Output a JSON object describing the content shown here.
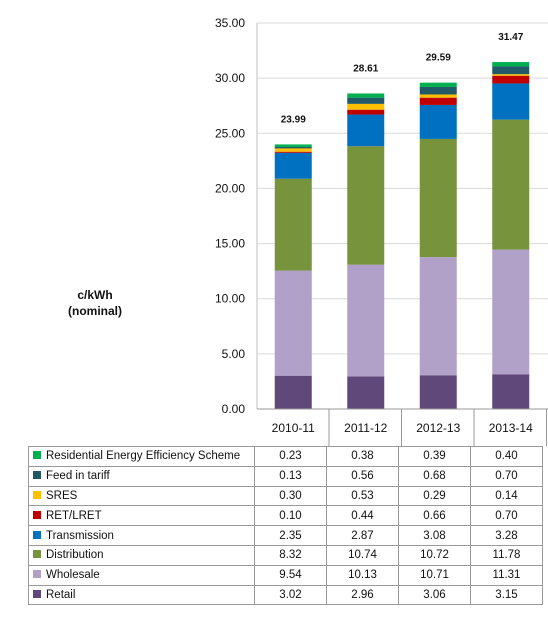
{
  "chart_data": {
    "type": "bar",
    "stacked": true,
    "categories": [
      "2010-11",
      "2011-12",
      "2012-13",
      "2013-14"
    ],
    "ylabel": "c/kWh\n(nominal)",
    "ylim": [
      0,
      35
    ],
    "yticks": [
      "0.00",
      "5.00",
      "10.00",
      "15.00",
      "20.00",
      "25.00",
      "30.00",
      "35.00"
    ],
    "totals": [
      "23.99",
      "28.61",
      "29.59",
      "31.47"
    ],
    "series": [
      {
        "name": "Retail",
        "color": "#60497a",
        "values": [
          3.02,
          2.96,
          3.06,
          3.15
        ],
        "labels": [
          "3.02",
          "2.96",
          "3.06",
          "3.15"
        ]
      },
      {
        "name": "Wholesale",
        "color": "#b1a0c7",
        "values": [
          9.54,
          10.13,
          10.71,
          11.31
        ],
        "labels": [
          "9.54",
          "10.13",
          "10.71",
          "11.31"
        ]
      },
      {
        "name": "Distribution",
        "color": "#77933c",
        "values": [
          8.32,
          10.74,
          10.72,
          11.78
        ],
        "labels": [
          "8.32",
          "10.74",
          "10.72",
          "11.78"
        ]
      },
      {
        "name": "Transmission",
        "color": "#0070c0",
        "values": [
          2.35,
          2.87,
          3.08,
          3.28
        ],
        "labels": [
          "2.35",
          "2.87",
          "3.08",
          "3.28"
        ]
      },
      {
        "name": "RET/LRET",
        "color": "#c00000",
        "values": [
          0.1,
          0.44,
          0.66,
          0.7
        ],
        "labels": [
          "0.10",
          "0.44",
          "0.66",
          "0.70"
        ]
      },
      {
        "name": "SRES",
        "color": "#ffc000",
        "values": [
          0.3,
          0.53,
          0.29,
          0.14
        ],
        "labels": [
          "0.30",
          "0.53",
          "0.29",
          "0.14"
        ]
      },
      {
        "name": "Feed in tariff",
        "color": "#215967",
        "values": [
          0.13,
          0.56,
          0.68,
          0.7
        ],
        "labels": [
          "0.13",
          "0.56",
          "0.68",
          "0.70"
        ]
      },
      {
        "name": "Residential Energy Efficiency Scheme",
        "color": "#00b050",
        "values": [
          0.23,
          0.38,
          0.39,
          0.4
        ],
        "labels": [
          "0.23",
          "0.38",
          "0.39",
          "0.40"
        ]
      }
    ]
  }
}
